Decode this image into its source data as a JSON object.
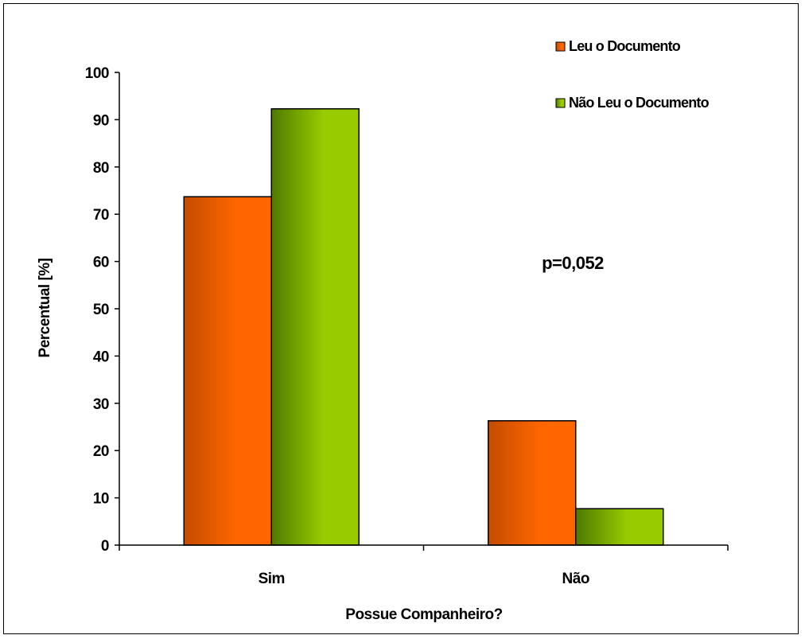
{
  "chart_data": {
    "type": "bar",
    "title": "",
    "xlabel": "Possue Companheiro?",
    "ylabel": "Percentual [%]",
    "categories": [
      "Sim",
      "Não"
    ],
    "series": [
      {
        "name": "Leu o Documento",
        "values": [
          73.7,
          26.3
        ],
        "color": "#ff6600",
        "color_dark": "#c44c00"
      },
      {
        "name": "Não Leu o Documento",
        "values": [
          92.3,
          7.7
        ],
        "color": "#99cc00",
        "color_dark": "#4d7a00"
      }
    ],
    "ylim": [
      0,
      100
    ],
    "yticks": [
      "0",
      "10",
      "20",
      "30",
      "40",
      "50",
      "60",
      "70",
      "80",
      "90",
      "100"
    ],
    "grid": false,
    "legend_position": "top-right",
    "annotation": "p=0,052"
  }
}
